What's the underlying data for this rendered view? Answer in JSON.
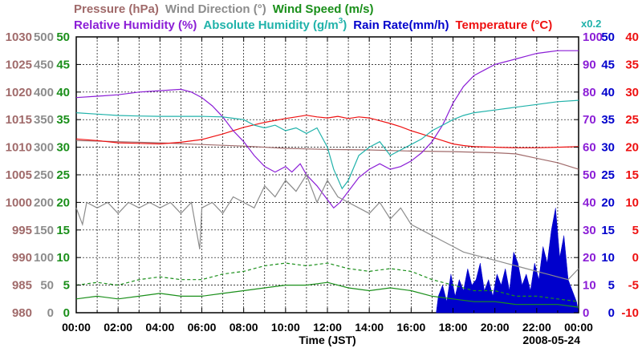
{
  "chart_data": {
    "type": "line",
    "date": "2008-05-24",
    "xlabel": "Time (JST)",
    "x_ticks": [
      "00:00",
      "02:00",
      "04:00",
      "06:00",
      "08:00",
      "10:00",
      "12:00",
      "14:00",
      "16:00",
      "18:00",
      "20:00",
      "22:00",
      "00:00"
    ],
    "xlim": [
      0,
      24
    ],
    "legend_row1": [
      {
        "label": "Pressure (hPa)",
        "color": "#a06a6a"
      },
      {
        "label": "Wind Direction (°)",
        "color": "#8c8c8c"
      },
      {
        "label": "Wind Speed (m/s)",
        "color": "#1a8f1a"
      }
    ],
    "legend_row2": [
      {
        "label": "Relative Humidity (%)",
        "color": "#8b1ed6"
      },
      {
        "label": "Absolute Humidity (g/m",
        "sup": "3",
        "close": ")",
        "color": "#20b2aa"
      },
      {
        "label": "Rain Rate(mm/h)",
        "color": "#0000cc"
      },
      {
        "label": "Temperature (°C)",
        "color": "#ee1111"
      }
    ],
    "scale_note": "x0.2",
    "axes": {
      "pressure": {
        "unit": "hPa",
        "ylim": [
          980,
          1030
        ],
        "ticks": [
          "980",
          "985",
          "990",
          "995",
          "1000",
          "1005",
          "1010",
          "1015",
          "1020",
          "1025",
          "1030"
        ],
        "color": "#a06a6a"
      },
      "wind_direction": {
        "unit": "°",
        "ylim": [
          0,
          500
        ],
        "ticks": [
          "0",
          "50",
          "100",
          "150",
          "200",
          "250",
          "300",
          "350",
          "400",
          "450",
          "500"
        ],
        "color": "#8c8c8c"
      },
      "wind_speed": {
        "unit": "m/s",
        "ylim": [
          0,
          50
        ],
        "ticks": [
          "0",
          "5",
          "10",
          "15",
          "20",
          "25",
          "30",
          "35",
          "40",
          "45",
          "50"
        ],
        "color": "#1a8f1a"
      },
      "relative_humidity": {
        "unit": "%",
        "ylim": [
          0,
          100
        ],
        "ticks": [
          "0",
          "10",
          "20",
          "30",
          "40",
          "50",
          "60",
          "70",
          "80",
          "90",
          "100"
        ],
        "color": "#8b1ed6"
      },
      "rain_rate": {
        "unit": "mm/h",
        "ylim": [
          0,
          50
        ],
        "ticks": [
          "0",
          "5",
          "10",
          "15",
          "20",
          "25",
          "30",
          "35",
          "40",
          "45",
          "50"
        ],
        "color": "#0000cc"
      },
      "temperature": {
        "unit": "°C",
        "ylim": [
          -10,
          40
        ],
        "ticks": [
          "-10",
          "-5",
          "0",
          "5",
          "10",
          "15",
          "20",
          "25",
          "30",
          "35",
          "40"
        ],
        "color": "#ee1111"
      }
    },
    "series": [
      {
        "name": "Pressure",
        "axis": "pressure",
        "color": "#a06a6a",
        "points": [
          [
            0,
            1011.2
          ],
          [
            2,
            1011
          ],
          [
            4,
            1010.8
          ],
          [
            6,
            1010.5
          ],
          [
            8,
            1010.2
          ],
          [
            10,
            1009.8
          ],
          [
            12,
            1009.6
          ],
          [
            14,
            1009.5
          ],
          [
            16,
            1009.3
          ],
          [
            18,
            1009.2
          ],
          [
            20,
            1009
          ],
          [
            21,
            1008.8
          ],
          [
            22,
            1008
          ],
          [
            23,
            1007.2
          ],
          [
            24,
            1006
          ]
        ]
      },
      {
        "name": "Temperature",
        "axis": "temperature",
        "color": "#ee1111",
        "points": [
          [
            0,
            21.5
          ],
          [
            1,
            21.2
          ],
          [
            2,
            20.8
          ],
          [
            3,
            20.7
          ],
          [
            4,
            20.6
          ],
          [
            5,
            20.9
          ],
          [
            6,
            21.4
          ],
          [
            7,
            22.4
          ],
          [
            8,
            23.6
          ],
          [
            9,
            24.5
          ],
          [
            10,
            25.2
          ],
          [
            10.5,
            25.5
          ],
          [
            11,
            25.8
          ],
          [
            11.5,
            25.5
          ],
          [
            12,
            25.3
          ],
          [
            12.5,
            25.6
          ],
          [
            13,
            25.2
          ],
          [
            13.5,
            25.5
          ],
          [
            14,
            25.3
          ],
          [
            14.5,
            24.8
          ],
          [
            15,
            24.3
          ],
          [
            15.5,
            23.7
          ],
          [
            16,
            23
          ],
          [
            16.5,
            22.4
          ],
          [
            17,
            21.8
          ],
          [
            17.5,
            21.2
          ],
          [
            18,
            20.6
          ],
          [
            18.5,
            20.3
          ],
          [
            19,
            20.1
          ],
          [
            20,
            20
          ],
          [
            21,
            19.9
          ],
          [
            22,
            19.9
          ],
          [
            23,
            20
          ],
          [
            24,
            20.1
          ]
        ]
      },
      {
        "name": "Relative Humidity",
        "axis": "relative_humidity",
        "color": "#8b1ed6",
        "points": [
          [
            0,
            78
          ],
          [
            1,
            78.5
          ],
          [
            2,
            79
          ],
          [
            3,
            80
          ],
          [
            4,
            80.5
          ],
          [
            5,
            81
          ],
          [
            5.5,
            80
          ],
          [
            6,
            78
          ],
          [
            6.5,
            75
          ],
          [
            7,
            71
          ],
          [
            7.5,
            66
          ],
          [
            8,
            62
          ],
          [
            8.5,
            57
          ],
          [
            9,
            53
          ],
          [
            9.5,
            51
          ],
          [
            10,
            53
          ],
          [
            10.3,
            51
          ],
          [
            10.7,
            54
          ],
          [
            11,
            50
          ],
          [
            11.5,
            46
          ],
          [
            12,
            41
          ],
          [
            12.3,
            38
          ],
          [
            12.6,
            40
          ],
          [
            13,
            44
          ],
          [
            13.5,
            49
          ],
          [
            14,
            52
          ],
          [
            14.5,
            54
          ],
          [
            15,
            52
          ],
          [
            15.5,
            53
          ],
          [
            16,
            55
          ],
          [
            16.5,
            58
          ],
          [
            17,
            62
          ],
          [
            17.5,
            68
          ],
          [
            18,
            76
          ],
          [
            18.5,
            82
          ],
          [
            19,
            86
          ],
          [
            19.5,
            88
          ],
          [
            20,
            90
          ],
          [
            20.5,
            91
          ],
          [
            21,
            92
          ],
          [
            21.5,
            93
          ],
          [
            22,
            94
          ],
          [
            22.5,
            94.5
          ],
          [
            23,
            95
          ],
          [
            23.5,
            95
          ],
          [
            24,
            95
          ]
        ]
      },
      {
        "name": "Absolute Humidity",
        "axis": "relative_humidity",
        "color": "#20b2aa",
        "points": [
          [
            0,
            72.5
          ],
          [
            1,
            72
          ],
          [
            2,
            71.5
          ],
          [
            3,
            71.3
          ],
          [
            4,
            71.2
          ],
          [
            5,
            71.2
          ],
          [
            6,
            71.2
          ],
          [
            7,
            71
          ],
          [
            7.5,
            70.5
          ],
          [
            8,
            70
          ],
          [
            8.5,
            68
          ],
          [
            9,
            67
          ],
          [
            9.5,
            68
          ],
          [
            10,
            66
          ],
          [
            10.5,
            67
          ],
          [
            11,
            65
          ],
          [
            11.5,
            67
          ],
          [
            12,
            60
          ],
          [
            12.3,
            52
          ],
          [
            12.7,
            45
          ],
          [
            13,
            48
          ],
          [
            13.5,
            57
          ],
          [
            14,
            60
          ],
          [
            14.5,
            62
          ],
          [
            15,
            57
          ],
          [
            15.5,
            59
          ],
          [
            16,
            61
          ],
          [
            16.5,
            63
          ],
          [
            17,
            66
          ],
          [
            17.5,
            68
          ],
          [
            18,
            70
          ],
          [
            18.5,
            71.5
          ],
          [
            19,
            72.5
          ],
          [
            20,
            73.5
          ],
          [
            21,
            74.5
          ],
          [
            22,
            75.5
          ],
          [
            23,
            76.5
          ],
          [
            24,
            77
          ]
        ]
      },
      {
        "name": "Wind Direction",
        "axis": "wind_direction",
        "color": "#8c8c8c",
        "points": [
          [
            0,
            190
          ],
          [
            0.3,
            160
          ],
          [
            0.5,
            200
          ],
          [
            1,
            190
          ],
          [
            1.5,
            200
          ],
          [
            2,
            180
          ],
          [
            2.5,
            200
          ],
          [
            3,
            190
          ],
          [
            3.5,
            200
          ],
          [
            4,
            190
          ],
          [
            4.5,
            200
          ],
          [
            5,
            180
          ],
          [
            5.5,
            200
          ],
          [
            5.9,
            115
          ],
          [
            6,
            190
          ],
          [
            6.5,
            200
          ],
          [
            7,
            180
          ],
          [
            7.5,
            210
          ],
          [
            8,
            200
          ],
          [
            8.5,
            190
          ],
          [
            9,
            230
          ],
          [
            9.5,
            210
          ],
          [
            10,
            240
          ],
          [
            10.5,
            220
          ],
          [
            11,
            250
          ],
          [
            11.5,
            200
          ],
          [
            12,
            240
          ],
          [
            12.5,
            210
          ],
          [
            13,
            200
          ],
          [
            13.5,
            190
          ],
          [
            14,
            180
          ],
          [
            14.5,
            200
          ],
          [
            15,
            170
          ],
          [
            15.5,
            190
          ],
          [
            16,
            160
          ],
          [
            16.5,
            150
          ],
          [
            17,
            140
          ],
          [
            17.5,
            130
          ],
          [
            18,
            120
          ],
          [
            18.5,
            110
          ],
          [
            19,
            105
          ],
          [
            19.5,
            100
          ],
          [
            20,
            95
          ],
          [
            20.5,
            90
          ],
          [
            21,
            85
          ],
          [
            21.5,
            80
          ],
          [
            22,
            75
          ],
          [
            22.5,
            70
          ],
          [
            23,
            65
          ],
          [
            23.5,
            60
          ],
          [
            24,
            80
          ]
        ]
      },
      {
        "name": "Wind Speed",
        "axis": "wind_speed",
        "color": "#1a8f1a",
        "points": [
          [
            0,
            2.5
          ],
          [
            1,
            3
          ],
          [
            2,
            2.5
          ],
          [
            3,
            3
          ],
          [
            4,
            3.5
          ],
          [
            5,
            3
          ],
          [
            6,
            3
          ],
          [
            7,
            3.5
          ],
          [
            8,
            4
          ],
          [
            9,
            4.5
          ],
          [
            10,
            5
          ],
          [
            11,
            5
          ],
          [
            12,
            5.5
          ],
          [
            13,
            4.5
          ],
          [
            14,
            4
          ],
          [
            15,
            4.5
          ],
          [
            16,
            4
          ],
          [
            17,
            3
          ],
          [
            18,
            2.5
          ],
          [
            19,
            2
          ],
          [
            20,
            2
          ],
          [
            21,
            1.5
          ],
          [
            22,
            1.5
          ],
          [
            23,
            1.5
          ],
          [
            24,
            1
          ]
        ]
      },
      {
        "name": "Wind Speed (gust)",
        "axis": "wind_speed",
        "color": "#1a8f1a",
        "dashed": true,
        "points": [
          [
            0,
            5
          ],
          [
            1,
            5.5
          ],
          [
            2,
            5
          ],
          [
            3,
            6
          ],
          [
            4,
            6.5
          ],
          [
            5,
            6
          ],
          [
            6,
            6
          ],
          [
            7,
            7
          ],
          [
            8,
            7.5
          ],
          [
            9,
            8.5
          ],
          [
            10,
            9
          ],
          [
            11,
            8.5
          ],
          [
            12,
            9
          ],
          [
            13,
            8
          ],
          [
            14,
            7.5
          ],
          [
            15,
            8
          ],
          [
            16,
            7.5
          ],
          [
            17,
            6
          ],
          [
            18,
            5
          ],
          [
            19,
            4
          ],
          [
            20,
            4
          ],
          [
            21,
            3
          ],
          [
            22,
            3
          ],
          [
            23,
            2.5
          ],
          [
            24,
            2
          ]
        ]
      }
    ],
    "rain": {
      "axis": "rain_rate",
      "color": "#0000cc",
      "points": [
        [
          17.2,
          0
        ],
        [
          17.3,
          3
        ],
        [
          17.5,
          5
        ],
        [
          17.7,
          2
        ],
        [
          17.9,
          7
        ],
        [
          18.1,
          3
        ],
        [
          18.3,
          6
        ],
        [
          18.5,
          4
        ],
        [
          18.7,
          8
        ],
        [
          18.9,
          5
        ],
        [
          19.1,
          6
        ],
        [
          19.3,
          9
        ],
        [
          19.5,
          4
        ],
        [
          19.7,
          6
        ],
        [
          19.9,
          3
        ],
        [
          20.1,
          7
        ],
        [
          20.3,
          5
        ],
        [
          20.5,
          8
        ],
        [
          20.7,
          4
        ],
        [
          20.9,
          11
        ],
        [
          21.1,
          9
        ],
        [
          21.3,
          5
        ],
        [
          21.5,
          7
        ],
        [
          21.7,
          4
        ],
        [
          21.9,
          9
        ],
        [
          22.1,
          6
        ],
        [
          22.3,
          12
        ],
        [
          22.5,
          9
        ],
        [
          22.7,
          15
        ],
        [
          22.9,
          19
        ],
        [
          23.1,
          10
        ],
        [
          23.3,
          14
        ],
        [
          23.5,
          6
        ],
        [
          23.7,
          4
        ],
        [
          23.9,
          2
        ],
        [
          24,
          0
        ]
      ]
    }
  }
}
